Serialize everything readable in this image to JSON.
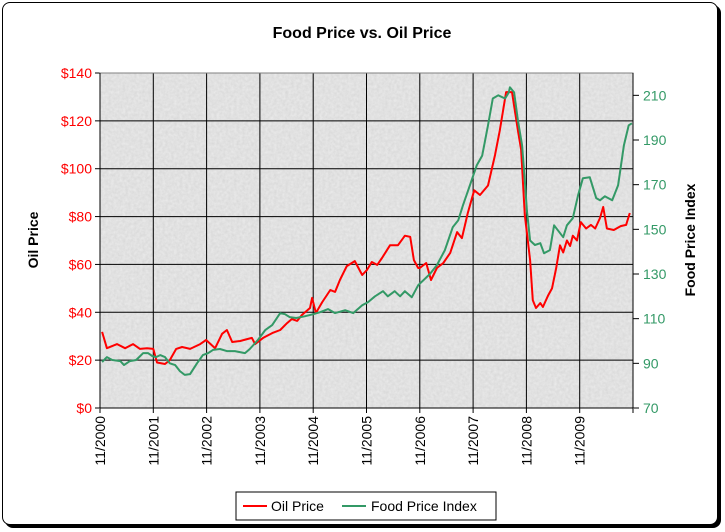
{
  "chart_data": {
    "type": "line",
    "title": "Food Price vs. Oil Price",
    "xlabel": "",
    "ylabel": "Oil Price",
    "y2label": "Food Price Index",
    "x_unit": "years since 11/2000",
    "xlim": [
      0,
      10
    ],
    "x_tick_labels": [
      "11/2000",
      "11/2001",
      "11/2002",
      "11/2003",
      "11/2004",
      "11/2005",
      "11/2006",
      "11/2007",
      "11/2008",
      "11/2009"
    ],
    "ylim": [
      0,
      140
    ],
    "y_ticks": [
      0,
      20,
      40,
      60,
      80,
      100,
      120,
      140
    ],
    "y_tick_labels": [
      "$0",
      "$20",
      "$40",
      "$60",
      "$80",
      "$100",
      "$120",
      "$140"
    ],
    "y2lim": [
      70,
      220
    ],
    "y2_ticks": [
      70,
      90,
      110,
      130,
      150,
      170,
      190,
      210
    ],
    "y2_tick_labels": [
      "70",
      "90",
      "110",
      "130",
      "150",
      "170",
      "190",
      "210"
    ],
    "grid": true,
    "legend_position": "bottom",
    "colors": {
      "oil": "#ff0000",
      "food": "#339966",
      "left_axis": "#ff0000",
      "right_axis": "#339966"
    },
    "series": [
      {
        "name": "Oil Price",
        "axis": "left",
        "color": "#ff0000",
        "points": [
          [
            0.04,
            31.8
          ],
          [
            0.13,
            25
          ],
          [
            0.32,
            26.7
          ],
          [
            0.47,
            25
          ],
          [
            0.62,
            26.7
          ],
          [
            0.75,
            24.7
          ],
          [
            0.88,
            25
          ],
          [
            1.0,
            24.7
          ],
          [
            1.07,
            19
          ],
          [
            1.22,
            18.4
          ],
          [
            1.31,
            20
          ],
          [
            1.43,
            24.7
          ],
          [
            1.54,
            25.5
          ],
          [
            1.69,
            24.7
          ],
          [
            1.88,
            26.7
          ],
          [
            1.99,
            28.4
          ],
          [
            2.06,
            27
          ],
          [
            2.16,
            25
          ],
          [
            2.29,
            31
          ],
          [
            2.38,
            32.6
          ],
          [
            2.48,
            27.6
          ],
          [
            2.63,
            28
          ],
          [
            2.76,
            28.8
          ],
          [
            2.85,
            29.3
          ],
          [
            2.91,
            26.7
          ],
          [
            3.06,
            29.3
          ],
          [
            3.23,
            31.3
          ],
          [
            3.38,
            32.6
          ],
          [
            3.51,
            35.5
          ],
          [
            3.6,
            37.2
          ],
          [
            3.7,
            36.4
          ],
          [
            3.79,
            38.9
          ],
          [
            3.94,
            41.8
          ],
          [
            3.98,
            46
          ],
          [
            4.05,
            39.7
          ],
          [
            4.17,
            44.3
          ],
          [
            4.32,
            49.3
          ],
          [
            4.41,
            48.5
          ],
          [
            4.5,
            53.5
          ],
          [
            4.63,
            59.3
          ],
          [
            4.78,
            61.4
          ],
          [
            4.92,
            55.6
          ],
          [
            5.01,
            57.7
          ],
          [
            5.1,
            61
          ],
          [
            5.2,
            59.8
          ],
          [
            5.29,
            62.7
          ],
          [
            5.44,
            68
          ],
          [
            5.59,
            68
          ],
          [
            5.72,
            72
          ],
          [
            5.82,
            71.5
          ],
          [
            5.89,
            61.8
          ],
          [
            5.97,
            58.5
          ],
          [
            6.0,
            58.5
          ],
          [
            6.12,
            60.6
          ],
          [
            6.21,
            53.5
          ],
          [
            6.32,
            58.5
          ],
          [
            6.44,
            60.6
          ],
          [
            6.57,
            64.8
          ],
          [
            6.7,
            73.5
          ],
          [
            6.79,
            71
          ],
          [
            6.9,
            81.5
          ],
          [
            7.02,
            91
          ],
          [
            7.13,
            89
          ],
          [
            7.28,
            93
          ],
          [
            7.41,
            105.7
          ],
          [
            7.5,
            116
          ],
          [
            7.62,
            132
          ],
          [
            7.73,
            132
          ],
          [
            7.84,
            116
          ],
          [
            7.9,
            108
          ],
          [
            7.97,
            80.7
          ],
          [
            8.07,
            61.8
          ],
          [
            8.12,
            45
          ],
          [
            8.18,
            41.8
          ],
          [
            8.26,
            43.9
          ],
          [
            8.31,
            42.2
          ],
          [
            8.41,
            47.2
          ],
          [
            8.48,
            50
          ],
          [
            8.56,
            58.5
          ],
          [
            8.63,
            68
          ],
          [
            8.69,
            65
          ],
          [
            8.76,
            70
          ],
          [
            8.82,
            67.7
          ],
          [
            8.87,
            72
          ],
          [
            8.95,
            70
          ],
          [
            9.02,
            77.7
          ],
          [
            9.12,
            75
          ],
          [
            9.21,
            76.5
          ],
          [
            9.29,
            75
          ],
          [
            9.38,
            79.4
          ],
          [
            9.44,
            84
          ],
          [
            9.51,
            75
          ],
          [
            9.64,
            74.4
          ],
          [
            9.77,
            76
          ],
          [
            9.87,
            76.5
          ],
          [
            9.94,
            81.5
          ]
        ]
      },
      {
        "name": "Food Price Index",
        "axis": "right",
        "color": "#339966",
        "points": [
          [
            0.04,
            90.6
          ],
          [
            0.13,
            92.8
          ],
          [
            0.23,
            91.5
          ],
          [
            0.38,
            91
          ],
          [
            0.45,
            89.2
          ],
          [
            0.56,
            91
          ],
          [
            0.68,
            91.5
          ],
          [
            0.81,
            94.6
          ],
          [
            0.9,
            94.6
          ],
          [
            0.98,
            93.3
          ],
          [
            1.05,
            92.8
          ],
          [
            1.13,
            93.7
          ],
          [
            1.22,
            92.8
          ],
          [
            1.31,
            90
          ],
          [
            1.41,
            89.2
          ],
          [
            1.5,
            86.5
          ],
          [
            1.59,
            84.8
          ],
          [
            1.69,
            85.2
          ],
          [
            1.82,
            90
          ],
          [
            1.93,
            93.7
          ],
          [
            2.03,
            94.6
          ],
          [
            2.12,
            96
          ],
          [
            2.25,
            96.4
          ],
          [
            2.38,
            95.5
          ],
          [
            2.53,
            95.5
          ],
          [
            2.72,
            94.6
          ],
          [
            2.81,
            96.4
          ],
          [
            2.96,
            100.4
          ],
          [
            3.1,
            104.9
          ],
          [
            3.23,
            107.1
          ],
          [
            3.38,
            112.5
          ],
          [
            3.47,
            112
          ],
          [
            3.56,
            110.7
          ],
          [
            3.68,
            110.3
          ],
          [
            3.85,
            111.1
          ],
          [
            4.0,
            112
          ],
          [
            4.13,
            112.9
          ],
          [
            4.28,
            114.3
          ],
          [
            4.41,
            112.5
          ],
          [
            4.6,
            113.8
          ],
          [
            4.75,
            112.5
          ],
          [
            4.92,
            116
          ],
          [
            5.03,
            117.4
          ],
          [
            5.16,
            120
          ],
          [
            5.31,
            122.3
          ],
          [
            5.4,
            120
          ],
          [
            5.53,
            122.3
          ],
          [
            5.63,
            120
          ],
          [
            5.72,
            122.3
          ],
          [
            5.85,
            119.6
          ],
          [
            5.97,
            125
          ],
          [
            6.19,
            130
          ],
          [
            6.32,
            134
          ],
          [
            6.47,
            140.7
          ],
          [
            6.62,
            151
          ],
          [
            6.72,
            154
          ],
          [
            6.81,
            160.8
          ],
          [
            6.94,
            169.7
          ],
          [
            7.07,
            178.7
          ],
          [
            7.17,
            183
          ],
          [
            7.28,
            196.6
          ],
          [
            7.37,
            208.6
          ],
          [
            7.47,
            210
          ],
          [
            7.6,
            208.6
          ],
          [
            7.67,
            211.3
          ],
          [
            7.69,
            213.6
          ],
          [
            7.77,
            211.3
          ],
          [
            7.84,
            198.8
          ],
          [
            7.92,
            187.6
          ],
          [
            7.97,
            172
          ],
          [
            8.01,
            158.5
          ],
          [
            8.07,
            145
          ],
          [
            8.16,
            143
          ],
          [
            8.26,
            143.8
          ],
          [
            8.33,
            139.3
          ],
          [
            8.44,
            140.7
          ],
          [
            8.52,
            151.8
          ],
          [
            8.59,
            149.6
          ],
          [
            8.69,
            146.5
          ],
          [
            8.76,
            151.8
          ],
          [
            8.87,
            155
          ],
          [
            8.97,
            165.3
          ],
          [
            9.06,
            172.9
          ],
          [
            9.19,
            173.3
          ],
          [
            9.31,
            164
          ],
          [
            9.38,
            163
          ],
          [
            9.47,
            164.8
          ],
          [
            9.61,
            163
          ],
          [
            9.72,
            169.7
          ],
          [
            9.83,
            187.6
          ],
          [
            9.92,
            196.6
          ],
          [
            9.98,
            197.5
          ]
        ]
      }
    ]
  }
}
